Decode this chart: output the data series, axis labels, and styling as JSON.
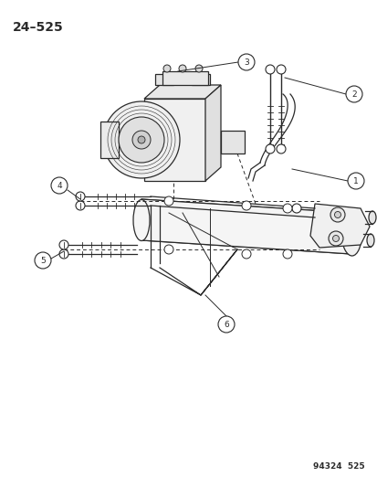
{
  "title_label": "24–525",
  "bottom_label": "94324  525",
  "bg": "#ffffff",
  "lc": "#2a2a2a",
  "fig_w": 4.14,
  "fig_h": 5.33,
  "dpi": 100
}
